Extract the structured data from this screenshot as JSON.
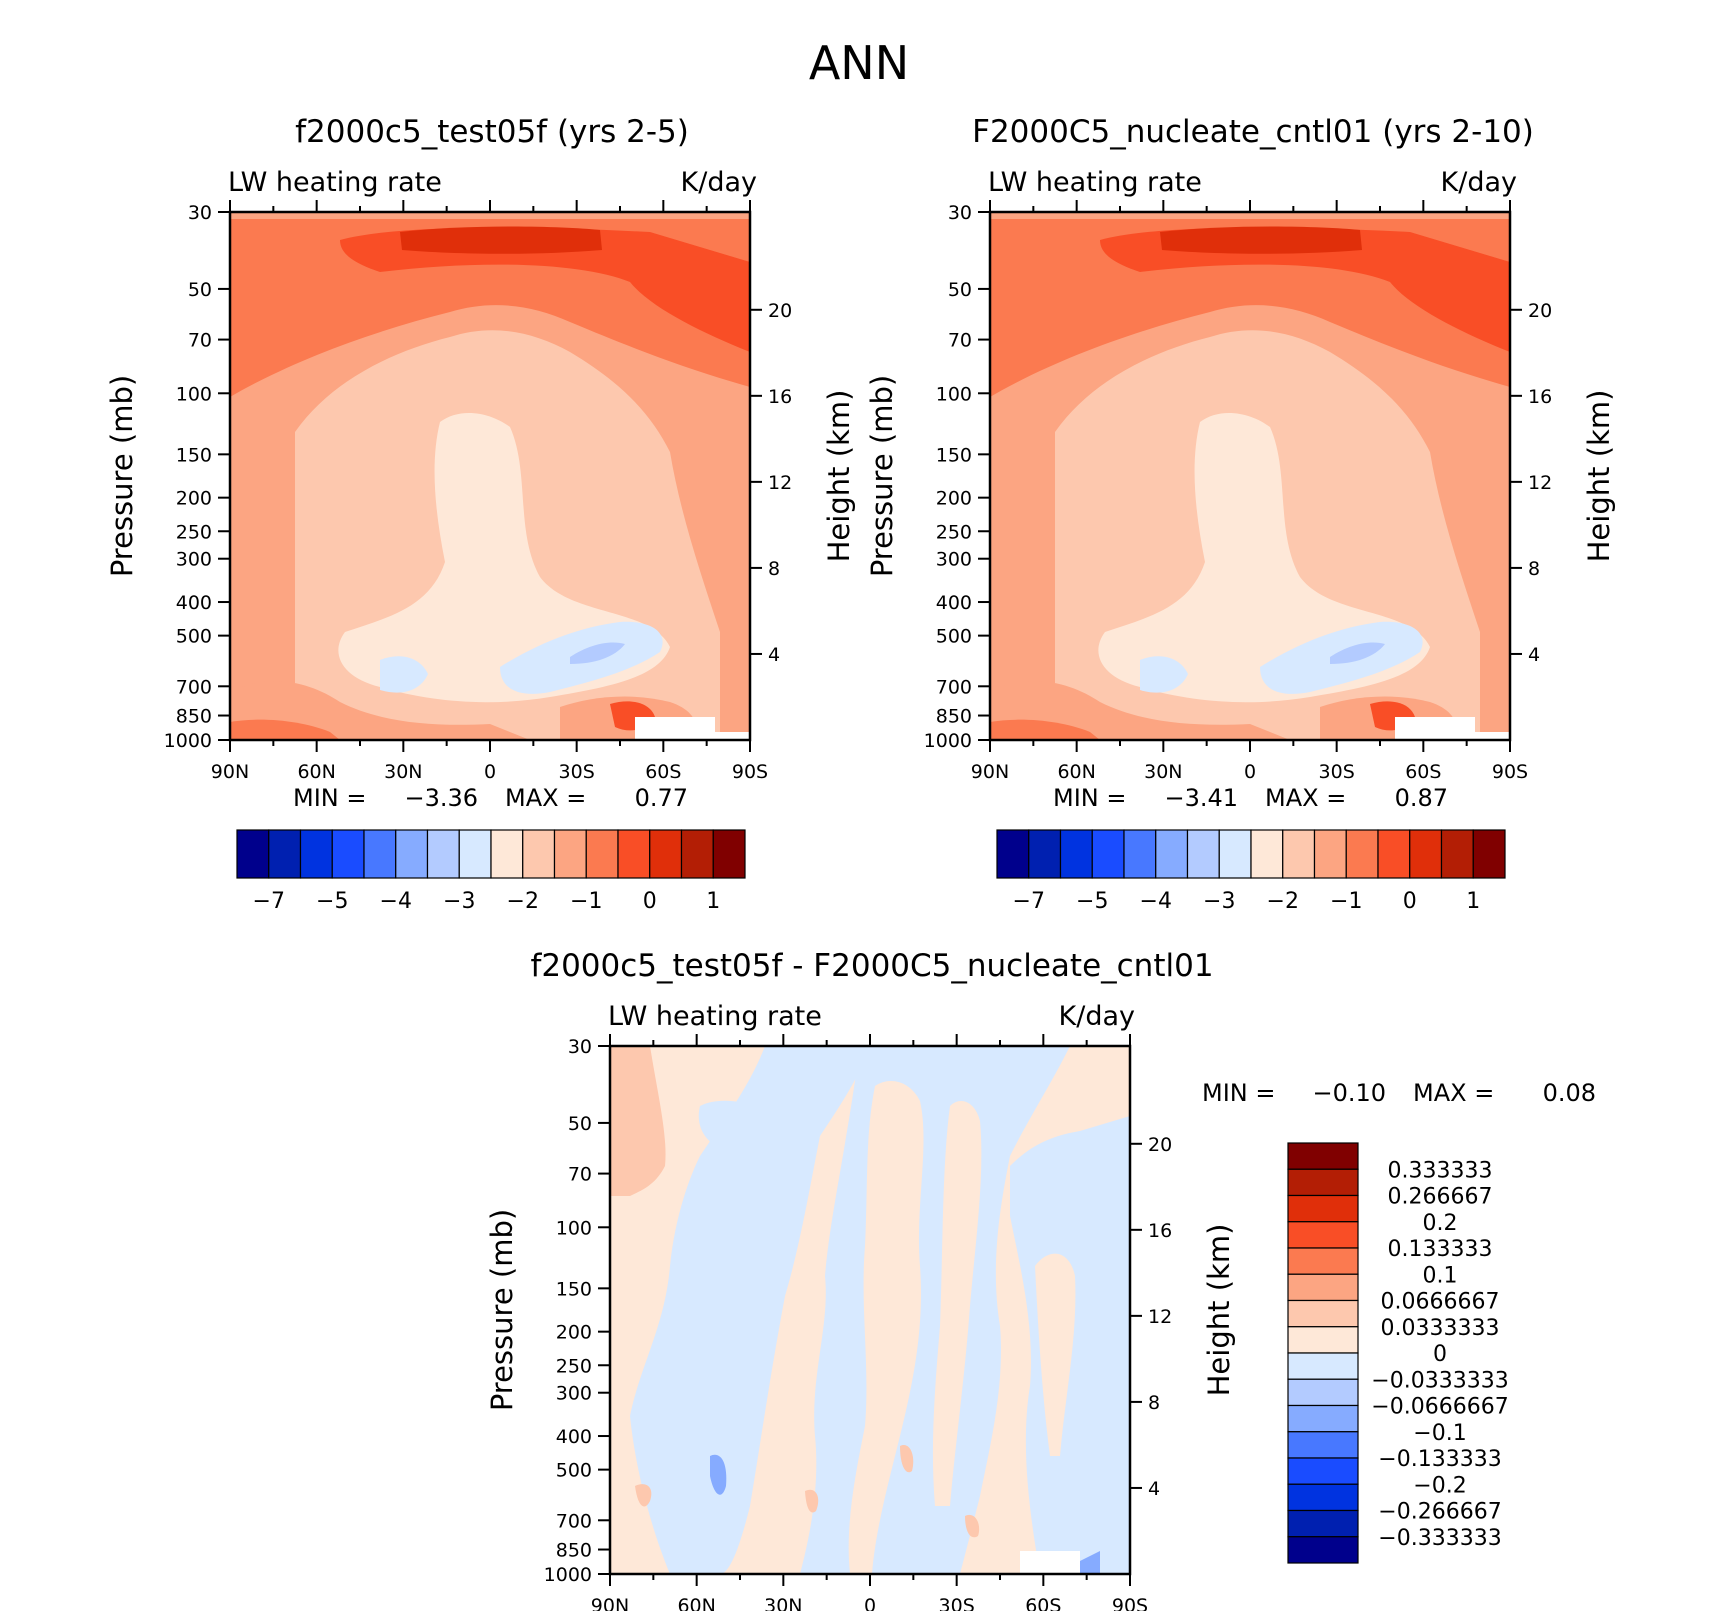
{
  "figure": {
    "title": "ANN"
  },
  "panels": [
    {
      "id": "test",
      "title": "f2000c5_test05f (yrs 2-5)",
      "left_header": "LW heating rate",
      "right_header": "K/day",
      "y_axis_title": "Pressure (mb)",
      "y2_axis_title": "Height (km)",
      "min_label": "MIN =",
      "min_value": "-3.36",
      "max_label": "MAX =",
      "max_value": "0.77"
    },
    {
      "id": "cntl",
      "title": "F2000C5_nucleate_cntl01 (yrs 2-10)",
      "left_header": "LW heating rate",
      "right_header": "K/day",
      "y_axis_title": "Pressure (mb)",
      "y2_axis_title": "Height (km)",
      "min_label": "MIN =",
      "min_value": "-3.41",
      "max_label": "MAX =",
      "max_value": "0.87"
    },
    {
      "id": "diff",
      "title": "f2000c5_test05f - F2000C5_nucleate_cntl01",
      "left_header": "LW heating rate",
      "right_header": "K/day",
      "y_axis_title": "Pressure (mb)",
      "y2_axis_title": "Height (km)",
      "min_label": "MIN =",
      "min_value": "-0.10",
      "max_label": "MAX =",
      "max_value": "0.08"
    }
  ],
  "chart_data": {
    "type": "heatmap",
    "x_ticks": [
      "90N",
      "60N",
      "30N",
      "0",
      "30S",
      "60S",
      "90S"
    ],
    "x_range": [
      90,
      -90
    ],
    "pressure_ticks": [
      30,
      50,
      70,
      100,
      150,
      200,
      250,
      300,
      400,
      500,
      700,
      850,
      1000
    ],
    "pressure_range_mb": [
      30,
      1000
    ],
    "height_ticks_km": [
      20,
      16,
      12,
      8,
      4
    ],
    "scale_height_km": 7,
    "colormap": [
      "#00008c",
      "#0020b0",
      "#0033e0",
      "#1a4cff",
      "#4878ff",
      "#86abff",
      "#b3cbff",
      "#d7e9ff",
      "#fee8d8",
      "#fdc8ae",
      "#fca582",
      "#fb7a50",
      "#f94e26",
      "#e02f0a",
      "#b31e05",
      "#800000"
    ],
    "colorbar_main": {
      "labels": [
        "-7",
        "-5",
        "-4",
        "-3",
        "-2",
        "-1",
        "0",
        "1"
      ],
      "label_after_box": [
        1,
        3,
        5,
        7,
        9,
        11,
        13,
        15
      ]
    },
    "colorbar_diff": {
      "levels": [
        "0.333333",
        "0.266667",
        "0.2",
        "0.133333",
        "0.1",
        "0.0666667",
        "0.0333333",
        "0",
        "-0.0333333",
        "-0.0666667",
        "-0.1",
        "-0.133333",
        "-0.2",
        "-0.266667",
        "-0.333333"
      ]
    }
  }
}
